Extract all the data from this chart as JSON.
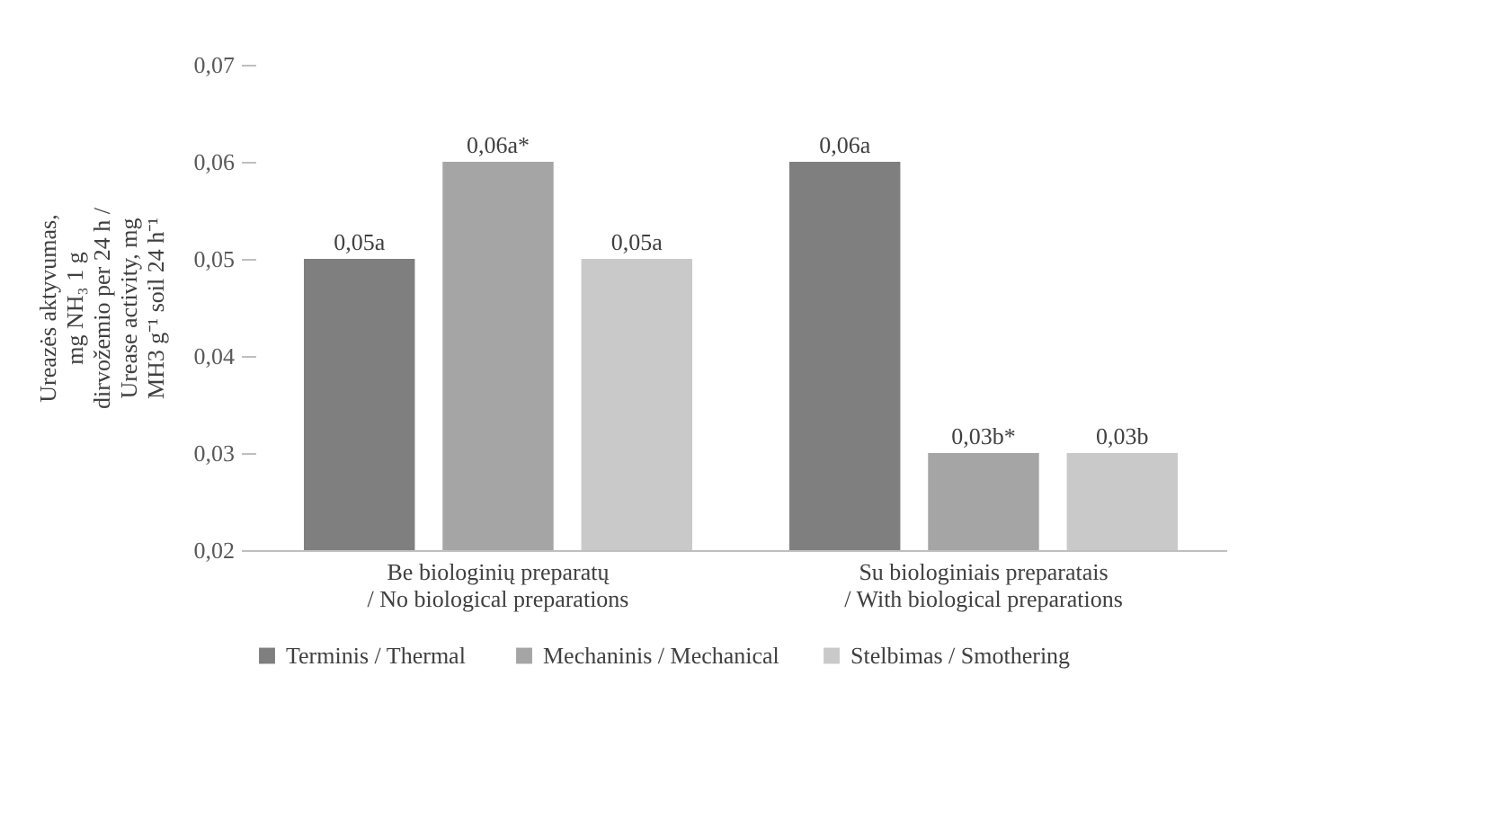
{
  "chart_data": {
    "type": "bar",
    "ylabel": "Ureazės aktyvumas,\nmg NH₃ 1 g\ndirvožemio per 24 h /\nUrease activity, mg\nMH3 g⁻¹ soil 24 h⁻¹",
    "categories": [
      "Be biologinių preparatų\n/ No biological preparations",
      "Su biologiniais preparatais\n/ With biological preparations"
    ],
    "series": [
      {
        "name": "Terminis /  Thermal",
        "color": "#7f7f7f",
        "values": [
          0.05,
          0.06
        ],
        "value_labels": [
          "0,05a",
          "0,06a"
        ]
      },
      {
        "name": "Mechaninis / Mechanical",
        "color": "#a5a5a5",
        "values": [
          0.06,
          0.03
        ],
        "value_labels": [
          "0,06a*",
          "0,03b*"
        ]
      },
      {
        "name": "Stelbimas / Smothering",
        "color": "#c9c9c9",
        "values": [
          0.05,
          0.03
        ],
        "value_labels": [
          "0,05a",
          "0,03b"
        ]
      }
    ],
    "ylim": [
      0.02,
      0.07
    ],
    "yticks": [
      {
        "value": 0.02,
        "label": "0,02"
      },
      {
        "value": 0.03,
        "label": "0,03"
      },
      {
        "value": 0.04,
        "label": "0,04"
      },
      {
        "value": 0.05,
        "label": "0,05"
      },
      {
        "value": 0.06,
        "label": "0,06"
      },
      {
        "value": 0.07,
        "label": "0,07"
      }
    ],
    "grid": false,
    "legend": "bottom"
  }
}
